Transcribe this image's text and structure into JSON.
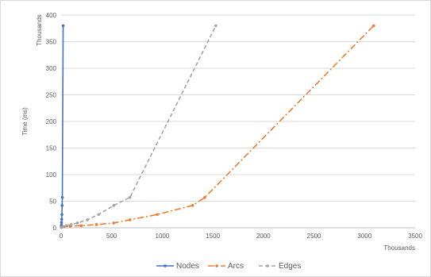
{
  "chart_data": {
    "type": "line",
    "title": "",
    "xlabel": "",
    "ylabel": "Time (ms)",
    "x_units_label": "Thousands",
    "y_units_label": "Thousands",
    "xlim": [
      0,
      3500
    ],
    "ylim": [
      0,
      400
    ],
    "x_ticks": [
      0,
      500,
      1000,
      1500,
      2000,
      2500,
      3000,
      3500
    ],
    "y_ticks": [
      0,
      50,
      100,
      150,
      200,
      250,
      300,
      350,
      400
    ],
    "grid": "horizontal",
    "legend_position": "bottom",
    "series": [
      {
        "name": "Nodes",
        "color": "#4472c4",
        "dash": "solid",
        "points": [
          [
            1,
            1
          ],
          [
            2,
            3
          ],
          [
            3,
            5
          ],
          [
            4,
            10
          ],
          [
            6,
            16
          ],
          [
            8,
            25
          ],
          [
            10,
            42
          ],
          [
            12,
            57
          ],
          [
            20,
            380
          ]
        ]
      },
      {
        "name": "Arcs",
        "color": "#ed7d31",
        "dash": "dashdot",
        "points": [
          [
            8,
            1
          ],
          [
            30,
            2
          ],
          [
            90,
            3
          ],
          [
            200,
            4
          ],
          [
            350,
            6
          ],
          [
            520,
            9
          ],
          [
            680,
            15
          ],
          [
            950,
            25
          ],
          [
            1300,
            42
          ],
          [
            1420,
            57
          ],
          [
            3090,
            380
          ]
        ]
      },
      {
        "name": "Edges",
        "color": "#a5a5a5",
        "dash": "dash",
        "points": [
          [
            4,
            1
          ],
          [
            20,
            2
          ],
          [
            50,
            4
          ],
          [
            100,
            6
          ],
          [
            160,
            9
          ],
          [
            260,
            15
          ],
          [
            370,
            25
          ],
          [
            520,
            42
          ],
          [
            680,
            57
          ],
          [
            1530,
            380
          ]
        ]
      }
    ]
  }
}
